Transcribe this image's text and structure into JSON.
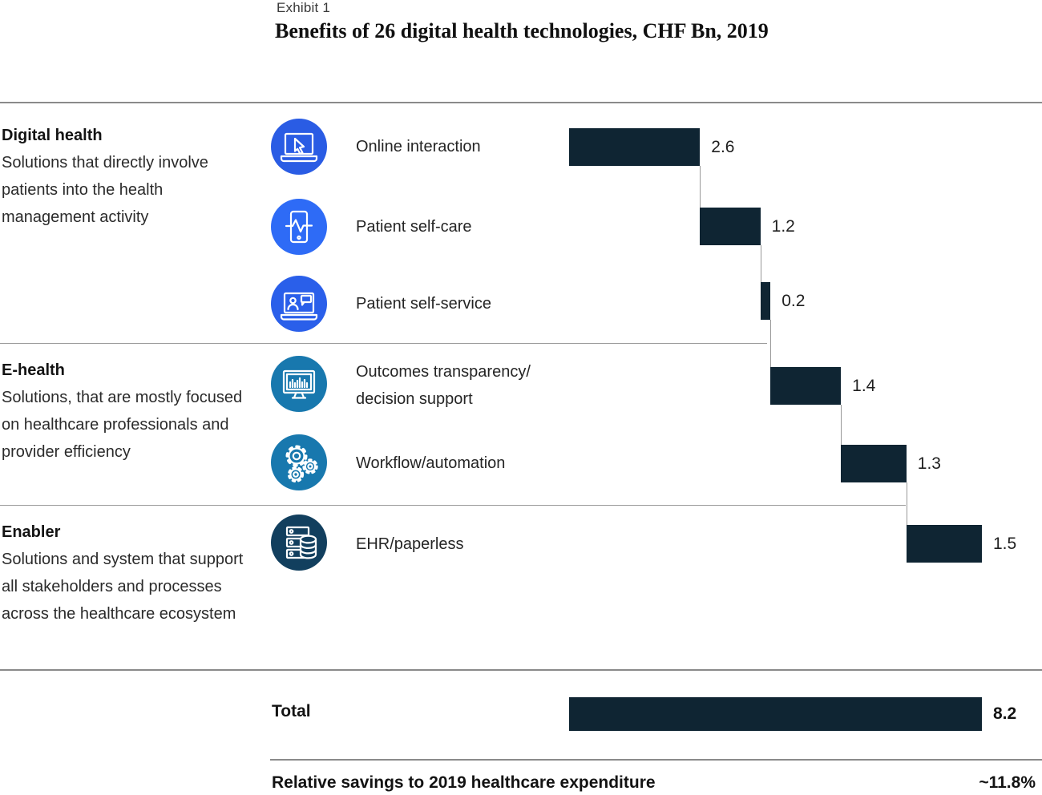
{
  "header": {
    "exhibit": "Exhibit 1",
    "title": "Benefits of 26 digital health technologies, CHF Bn, 2019"
  },
  "chart_data": {
    "type": "bar",
    "subtype": "waterfall",
    "title": "Benefits of 26 digital health technologies, CHF Bn, 2019",
    "unit": "CHF Bn",
    "year": "2019",
    "axis": {
      "x_min": 0,
      "x_max": 8.2
    },
    "bar_color": "#0f2533",
    "grid": "off",
    "groups": [
      {
        "name": "Digital health",
        "description": "Solutions that directly involve patients into the health management activity"
      },
      {
        "name": "E-health",
        "description": "Solutions, that are mostly focused on healthcare professionals and provider efficiency"
      },
      {
        "name": "Enabler",
        "description": "Solutions and system that support all stakeholders and processes across the healthcare ecosystem"
      }
    ],
    "rows": [
      {
        "label": "Online interaction",
        "value": 2.6,
        "value_label": "2.6",
        "icon": "laptop-cursor-icon",
        "icon_color": "#2a5ce4",
        "group": "Digital health"
      },
      {
        "label": "Patient self-care",
        "value": 1.2,
        "value_label": "1.2",
        "icon": "phone-pulse-icon",
        "icon_color": "#2e6bf6",
        "group": "Digital health"
      },
      {
        "label": "Patient self-service",
        "value": 0.2,
        "value_label": "0.2",
        "icon": "laptop-person-chat-icon",
        "icon_color": "#2a5fea",
        "group": "Digital health"
      },
      {
        "label": "Outcomes transparency/\ndecision support",
        "value": 1.4,
        "value_label": "1.4",
        "icon": "monitor-chart-icon",
        "icon_color": "#1878ae",
        "group": "E-health"
      },
      {
        "label": "Workflow/automation",
        "value": 1.3,
        "value_label": "1.3",
        "icon": "gears-icon",
        "icon_color": "#1878ae",
        "group": "E-health"
      },
      {
        "label": "EHR/paperless",
        "value": 1.5,
        "value_label": "1.5",
        "icon": "server-database-icon",
        "icon_color": "#123f5e",
        "group": "Enabler"
      }
    ],
    "total": {
      "label": "Total",
      "value": 8.2,
      "value_label": "8.2"
    },
    "footer": {
      "label": "Relative savings to 2019 healthcare expenditure",
      "value_label": "~11.8%"
    }
  }
}
